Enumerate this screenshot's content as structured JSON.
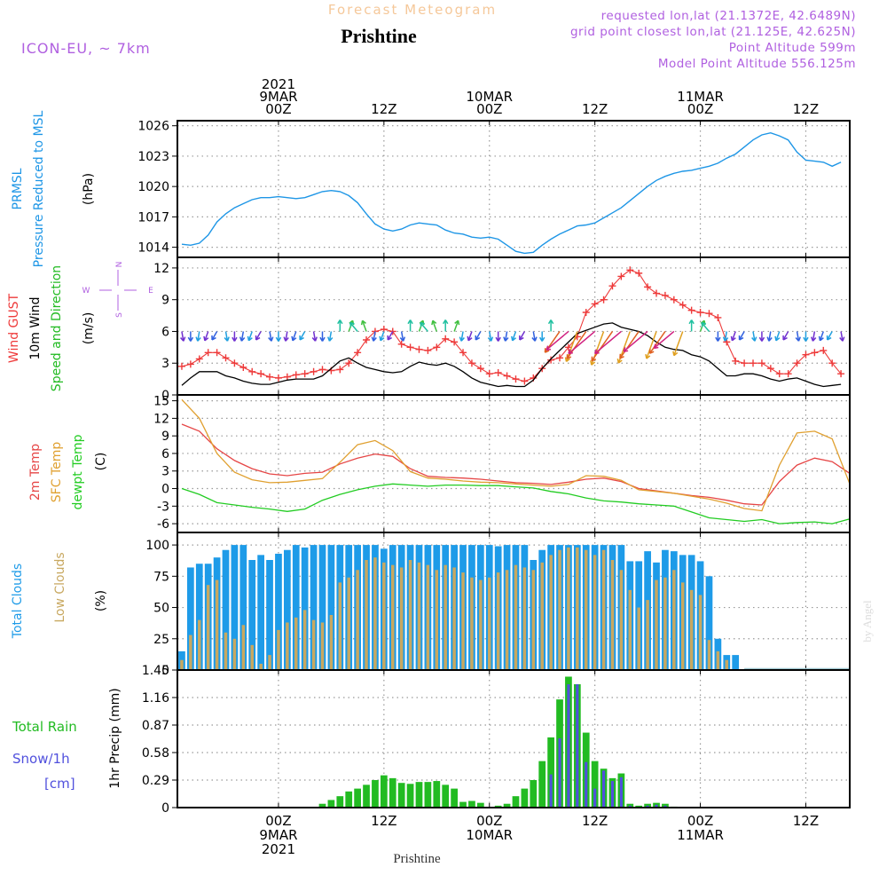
{
  "header": {
    "subtitle": "Forecast Meteogram",
    "place": "Prishtine",
    "model": "ICON-EU, ~ 7km",
    "requested": "requested lon,lat (21.1372E, 42.6489N)",
    "grid_point": "grid point closest lon,lat (21.125E, 42.625N)",
    "point_alt": "Point Altitude 599m",
    "model_alt": "Model Point Altitude 556.125m",
    "watermark": "by Angel",
    "footer_place": "Prishtine"
  },
  "time_axis": {
    "top_labels": [
      {
        "h": 0,
        "lines": [
          "2021",
          "9MAR",
          "00Z"
        ]
      },
      {
        "h": 12,
        "lines": [
          "12Z"
        ]
      },
      {
        "h": 24,
        "lines": [
          "10MAR",
          "00Z"
        ]
      },
      {
        "h": 36,
        "lines": [
          "12Z"
        ]
      },
      {
        "h": 48,
        "lines": [
          "11MAR",
          "00Z"
        ]
      },
      {
        "h": 60,
        "lines": [
          "12Z"
        ]
      }
    ],
    "bottom_labels": [
      {
        "h": 0,
        "lines": [
          "00Z",
          "9MAR",
          "2021"
        ]
      },
      {
        "h": 12,
        "lines": [
          "12Z"
        ]
      },
      {
        "h": 24,
        "lines": [
          "00Z",
          "10MAR"
        ]
      },
      {
        "h": 36,
        "lines": [
          "12Z"
        ]
      },
      {
        "h": 48,
        "lines": [
          "00Z",
          "11MAR"
        ]
      },
      {
        "h": 60,
        "lines": [
          "12Z"
        ]
      }
    ],
    "range_hours": [
      -11.5,
      65
    ]
  },
  "colors": {
    "prmsl": "#1e96e6",
    "gust": "#ee3a3a",
    "wind": "#000000",
    "green": "#22bb22",
    "t2m": "#e64646",
    "sfc": "#e0a030",
    "dew": "#22cc22",
    "total_clouds": "#1e9be8",
    "low_clouds": "#c8a860",
    "rain": "#22bb22",
    "snow": "#5050dd",
    "title_orange": "#f5c89a",
    "violet": "#b060e0",
    "grid": "#999999"
  },
  "chart_data": [
    {
      "type": "line",
      "name": "pressure",
      "labels": [
        "PRMSL",
        "Pressure Reduced to MSL"
      ],
      "unit": "(hPa)",
      "yticks": [
        1014,
        1017,
        1020,
        1023,
        1026
      ],
      "ylim": [
        1013,
        1026.5
      ],
      "x": [
        -11,
        -10,
        -9,
        -8,
        -7,
        -6,
        -5,
        -4,
        -3,
        -2,
        -1,
        0,
        1,
        2,
        3,
        4,
        5,
        6,
        7,
        8,
        9,
        10,
        11,
        12,
        13,
        14,
        15,
        16,
        17,
        18,
        19,
        20,
        21,
        22,
        23,
        24,
        25,
        26,
        27,
        28,
        29,
        30,
        31,
        32,
        33,
        34,
        35,
        36,
        37,
        38,
        39,
        40,
        41,
        42,
        43,
        44,
        45,
        46,
        47,
        48,
        49,
        50,
        51,
        52,
        53,
        54,
        55,
        56,
        57,
        58,
        59,
        60,
        61,
        62,
        63,
        64
      ],
      "series": [
        {
          "name": "PRMSL",
          "color": "#1e96e6",
          "values": [
            1014.3,
            1014.2,
            1014.4,
            1015.2,
            1016.5,
            1017.3,
            1017.9,
            1018.3,
            1018.7,
            1018.9,
            1018.9,
            1019.0,
            1018.9,
            1018.8,
            1018.9,
            1019.2,
            1019.5,
            1019.6,
            1019.5,
            1019.1,
            1018.4,
            1017.3,
            1016.3,
            1015.8,
            1015.6,
            1015.8,
            1016.2,
            1016.4,
            1016.3,
            1016.2,
            1015.7,
            1015.4,
            1015.3,
            1015.0,
            1014.9,
            1015.0,
            1014.8,
            1014.2,
            1013.6,
            1013.4,
            1013.5,
            1014.2,
            1014.8,
            1015.3,
            1015.7,
            1016.1,
            1016.2,
            1016.4,
            1016.9,
            1017.4,
            1017.9,
            1018.6,
            1019.3,
            1020.0,
            1020.6,
            1021.0,
            1021.3,
            1021.5,
            1021.6,
            1021.8,
            1022.0,
            1022.3,
            1022.8,
            1023.2,
            1023.9,
            1024.6,
            1025.1,
            1025.3,
            1025.0,
            1024.6,
            1023.4,
            1022.6,
            1022.5,
            1022.4,
            1022.0,
            1022.4
          ]
        }
      ]
    },
    {
      "type": "line",
      "name": "wind",
      "labels": [
        "Wind GUST",
        "10m Wind",
        "Speed and Direction"
      ],
      "unit": "(m/s)",
      "compass": {
        "n": "N",
        "s": "S",
        "w": "W",
        "e": "E"
      },
      "yticks": [
        0,
        3,
        6,
        9,
        12
      ],
      "ylim": [
        0,
        13
      ],
      "x": [
        -11,
        -10,
        -9,
        -8,
        -7,
        -6,
        -5,
        -4,
        -3,
        -2,
        -1,
        0,
        1,
        2,
        3,
        4,
        5,
        6,
        7,
        8,
        9,
        10,
        11,
        12,
        13,
        14,
        15,
        16,
        17,
        18,
        19,
        20,
        21,
        22,
        23,
        24,
        25,
        26,
        27,
        28,
        29,
        30,
        31,
        32,
        33,
        34,
        35,
        36,
        37,
        38,
        39,
        40,
        41,
        42,
        43,
        44,
        45,
        46,
        47,
        48,
        49,
        50,
        51,
        52,
        53,
        54,
        55,
        56,
        57,
        58,
        59,
        60,
        61,
        62,
        63,
        64
      ],
      "series": [
        {
          "name": "Wind GUST",
          "color": "#ee3a3a",
          "marker": "+",
          "values": [
            2.7,
            2.9,
            3.4,
            4.0,
            4.0,
            3.5,
            3.0,
            2.6,
            2.2,
            2.0,
            1.7,
            1.6,
            1.7,
            1.9,
            2.0,
            2.2,
            2.4,
            2.3,
            2.4,
            3.0,
            4.0,
            5.2,
            6.0,
            6.2,
            6.0,
            4.8,
            4.5,
            4.3,
            4.2,
            4.5,
            5.3,
            5.0,
            4.0,
            3.0,
            2.5,
            2.0,
            2.1,
            1.8,
            1.5,
            1.3,
            1.6,
            2.5,
            3.3,
            3.5,
            4.5,
            5.5,
            7.8,
            8.6,
            9.0,
            10.3,
            11.2,
            11.8,
            11.5,
            10.2,
            9.6,
            9.4,
            9.0,
            8.5,
            8.0,
            7.8,
            7.7,
            7.3,
            5.0,
            3.2,
            3.0,
            3.0,
            3.0,
            2.5,
            2.0,
            2.0,
            3.0,
            3.8,
            4.0,
            4.2,
            3.0,
            2.0
          ]
        },
        {
          "name": "10m Wind",
          "color": "#000000",
          "values": [
            0.9,
            1.6,
            2.2,
            2.2,
            2.2,
            1.8,
            1.6,
            1.3,
            1.1,
            1.0,
            1.0,
            1.2,
            1.4,
            1.5,
            1.5,
            1.5,
            1.8,
            2.5,
            3.2,
            3.5,
            3.0,
            2.6,
            2.4,
            2.2,
            2.1,
            2.2,
            2.7,
            3.1,
            2.9,
            2.8,
            3.0,
            2.7,
            2.2,
            1.6,
            1.2,
            1.0,
            0.8,
            0.9,
            0.8,
            0.8,
            1.4,
            2.5,
            3.4,
            4.2,
            5.0,
            5.8,
            6.1,
            6.4,
            6.7,
            6.8,
            6.4,
            6.2,
            6.0,
            5.6,
            5.0,
            4.5,
            4.3,
            4.2,
            3.8,
            3.6,
            3.2,
            2.5,
            1.8,
            1.8,
            2.0,
            2.0,
            1.8,
            1.5,
            1.3,
            1.5,
            1.6,
            1.3,
            1.0,
            0.8,
            0.9,
            1.0
          ]
        }
      ]
    },
    {
      "type": "line",
      "name": "temperature",
      "labels": [
        "2m Temp",
        "SFC Temp",
        "dewpt Temp"
      ],
      "unit": "(C)",
      "yticks": [
        -6,
        -3,
        0,
        3,
        6,
        9,
        12,
        15
      ],
      "ylim": [
        -7.5,
        16
      ],
      "x": [
        -11,
        -9,
        -7,
        -5,
        -3,
        -1,
        1,
        3,
        5,
        7,
        9,
        11,
        13,
        15,
        17,
        19,
        21,
        23,
        25,
        27,
        29,
        31,
        33,
        35,
        37,
        39,
        41,
        43,
        45,
        47,
        49,
        51,
        53,
        55,
        57,
        59,
        61,
        63,
        65
      ],
      "series": [
        {
          "name": "2m Temp",
          "color": "#e64646",
          "values": [
            11.0,
            9.8,
            6.8,
            4.8,
            3.4,
            2.5,
            2.2,
            2.6,
            2.8,
            4.2,
            5.2,
            5.9,
            5.5,
            3.4,
            2.1,
            1.9,
            1.8,
            1.6,
            1.3,
            1.0,
            0.9,
            0.7,
            1.1,
            1.6,
            1.8,
            1.2,
            0.0,
            -0.4,
            -0.8,
            -1.2,
            -1.5,
            -2.0,
            -2.6,
            -2.8,
            1.2,
            4.0,
            5.2,
            4.6,
            2.6
          ]
        },
        {
          "name": "SFC Temp",
          "color": "#e0a030",
          "values": [
            15.2,
            12.0,
            6.0,
            2.8,
            1.5,
            1.0,
            1.1,
            1.4,
            1.7,
            4.5,
            7.5,
            8.2,
            6.5,
            2.9,
            1.8,
            1.6,
            1.3,
            1.1,
            1.0,
            0.8,
            0.6,
            0.4,
            0.7,
            2.2,
            2.1,
            1.4,
            -0.2,
            -0.5,
            -0.8,
            -1.3,
            -1.8,
            -2.5,
            -3.4,
            -3.8,
            4.0,
            9.5,
            9.8,
            8.5,
            0.8
          ]
        },
        {
          "name": "dewpt Temp",
          "color": "#22cc22",
          "values": [
            0.0,
            -1.0,
            -2.4,
            -2.8,
            -3.2,
            -3.5,
            -3.9,
            -3.5,
            -2.0,
            -1.0,
            -0.2,
            0.4,
            0.8,
            0.6,
            0.4,
            0.6,
            0.6,
            0.5,
            0.5,
            0.3,
            0.1,
            -0.5,
            -0.9,
            -1.6,
            -2.1,
            -2.3,
            -2.6,
            -2.8,
            -3.0,
            -4.0,
            -5.0,
            -5.3,
            -5.6,
            -5.3,
            -6.0,
            -5.8,
            -5.7,
            -6.0,
            -5.2
          ]
        }
      ]
    },
    {
      "type": "bar",
      "name": "clouds",
      "labels": [
        "Total Clouds",
        "Low Clouds"
      ],
      "unit": "(%)",
      "yticks": [
        0,
        25,
        50,
        75,
        100
      ],
      "ylim": [
        0,
        110
      ],
      "x": [
        -11,
        -10,
        -9,
        -8,
        -7,
        -6,
        -5,
        -4,
        -3,
        -2,
        -1,
        0,
        1,
        2,
        3,
        4,
        5,
        6,
        7,
        8,
        9,
        10,
        11,
        12,
        13,
        14,
        15,
        16,
        17,
        18,
        19,
        20,
        21,
        22,
        23,
        24,
        25,
        26,
        27,
        28,
        29,
        30,
        31,
        32,
        33,
        34,
        35,
        36,
        37,
        38,
        39,
        40,
        41,
        42,
        43,
        44,
        45,
        46,
        47,
        48,
        49,
        50,
        51,
        52
      ],
      "series": [
        {
          "name": "Total Clouds",
          "color": "#1e9be8",
          "values": [
            15,
            82,
            85,
            85,
            90,
            96,
            100,
            100,
            88,
            92,
            88,
            93,
            96,
            100,
            98,
            100,
            100,
            100,
            100,
            100,
            100,
            100,
            100,
            97,
            100,
            100,
            100,
            100,
            100,
            100,
            100,
            100,
            100,
            100,
            100,
            100,
            99,
            100,
            100,
            100,
            88,
            96,
            100,
            100,
            100,
            100,
            100,
            100,
            100,
            100,
            100,
            87,
            87,
            95,
            86,
            96,
            95,
            92,
            92,
            87,
            75,
            25,
            12,
            12
          ]
        },
        {
          "name": "Low Clouds",
          "color": "#c8a860",
          "values": [
            8,
            28,
            40,
            68,
            72,
            30,
            25,
            36,
            20,
            5,
            12,
            32,
            38,
            42,
            48,
            40,
            38,
            44,
            70,
            74,
            80,
            88,
            90,
            86,
            84,
            82,
            88,
            86,
            84,
            80,
            84,
            82,
            78,
            74,
            72,
            74,
            78,
            80,
            84,
            82,
            80,
            86,
            92,
            96,
            98,
            98,
            96,
            92,
            96,
            88,
            80,
            64,
            50,
            56,
            72,
            74,
            80,
            70,
            64,
            60,
            24,
            15,
            8,
            0
          ]
        }
      ]
    },
    {
      "type": "bar",
      "name": "precip",
      "labels": [
        "Total  Rain",
        "Snow/1h",
        "[cm]"
      ],
      "unit": "1hr Precip (mm)",
      "yticks": [
        0,
        0.29,
        0.58,
        0.87,
        1.16,
        1.45
      ],
      "ylim": [
        0,
        1.45
      ],
      "x": [
        5,
        6,
        7,
        8,
        9,
        10,
        11,
        12,
        13,
        14,
        15,
        16,
        17,
        18,
        19,
        20,
        21,
        22,
        23,
        24,
        25,
        26,
        27,
        28,
        29,
        30,
        31,
        32,
        33,
        34,
        35,
        36,
        37,
        38,
        39,
        40,
        41,
        42,
        43,
        44,
        45
      ],
      "series": [
        {
          "name": "Total Rain",
          "color": "#22bb22",
          "values": [
            0.04,
            0.08,
            0.12,
            0.17,
            0.2,
            0.24,
            0.29,
            0.34,
            0.31,
            0.26,
            0.25,
            0.27,
            0.27,
            0.28,
            0.24,
            0.2,
            0.06,
            0.07,
            0.05,
            0.0,
            0.02,
            0.04,
            0.12,
            0.2,
            0.29,
            0.49,
            0.74,
            1.14,
            1.38,
            1.3,
            0.79,
            0.49,
            0.41,
            0.31,
            0.36,
            0.04,
            0.02,
            0.04,
            0.05,
            0.04,
            0.01
          ]
        },
        {
          "name": "Snow/1h",
          "color": "#5050dd",
          "values": [
            0.0,
            0.0,
            0.0,
            0.0,
            0.0,
            0.0,
            0.0,
            0.0,
            0.0,
            0.0,
            0.0,
            0.0,
            0.0,
            0.0,
            0.0,
            0.0,
            0.0,
            0.0,
            0.0,
            0.0,
            0.0,
            0.0,
            0.0,
            0.0,
            0.0,
            0.0,
            0.35,
            0.73,
            1.3,
            1.3,
            0.48,
            0.2,
            0.39,
            0.28,
            0.32,
            0.02,
            0.0,
            0.02,
            0.03,
            0.02,
            0.0
          ]
        }
      ]
    }
  ]
}
